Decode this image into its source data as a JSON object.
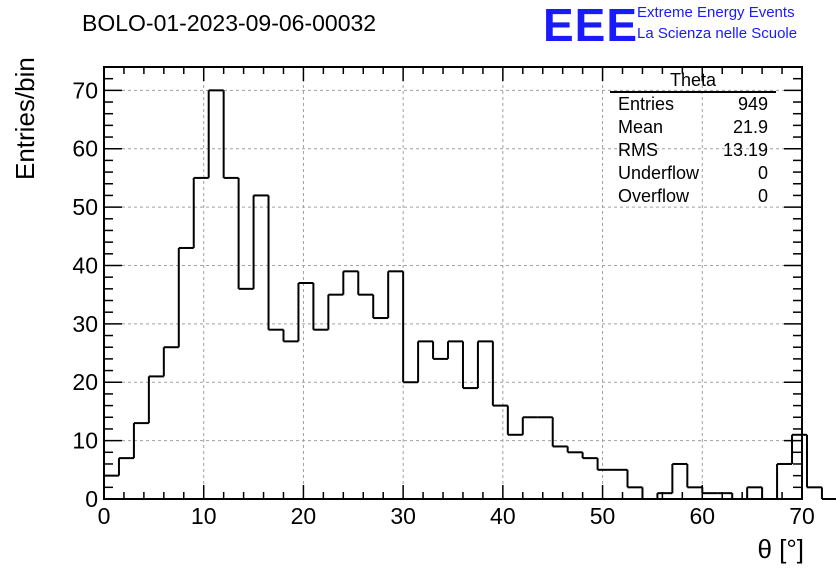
{
  "header": {
    "title": "BOLO-01-2023-09-06-00032",
    "logo": "EEE",
    "logo_line1": "Extreme Energy Events",
    "logo_line2": "La Scienza nelle Scuole"
  },
  "stats": {
    "title": "Theta",
    "rows": [
      {
        "label": "Entries",
        "value": "949"
      },
      {
        "label": "Mean",
        "value": "21.9"
      },
      {
        "label": "RMS",
        "value": "13.19"
      },
      {
        "label": "Underflow",
        "value": "0"
      },
      {
        "label": "Overflow",
        "value": "0"
      }
    ]
  },
  "colors": {
    "line": "#000000",
    "grid": "#a0a0a0",
    "logo": "#1a1aff"
  },
  "chart_data": {
    "type": "bar",
    "histogram": true,
    "title": "BOLO-01-2023-09-06-00032",
    "xlabel": "θ [°]",
    "ylabel": "Entries/bin",
    "xlim": [
      0,
      70
    ],
    "ylim": [
      0,
      74
    ],
    "grid": true,
    "x_ticks": [
      0,
      10,
      20,
      30,
      40,
      50,
      60,
      70
    ],
    "y_ticks": [
      0,
      10,
      20,
      30,
      40,
      50,
      60,
      70
    ],
    "bin_width": 1.5,
    "bin_edges_start": 0,
    "values": [
      4,
      7,
      13,
      21,
      26,
      43,
      55,
      70,
      55,
      36,
      52,
      29,
      27,
      37,
      29,
      35,
      39,
      35,
      31,
      39,
      20,
      27,
      24,
      27,
      19,
      27,
      16,
      11,
      14,
      14,
      9,
      8,
      7,
      5,
      5,
      2,
      0,
      1,
      6,
      2,
      1,
      1,
      0,
      2,
      0,
      6,
      11,
      2,
      0
    ]
  }
}
